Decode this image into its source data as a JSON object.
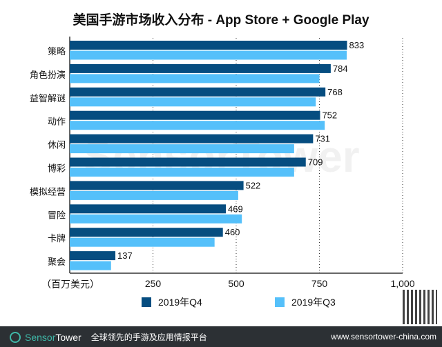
{
  "chart_data": {
    "type": "bar",
    "orientation": "horizontal",
    "title": "美国手游市场收入分布 - App Store + Google Play",
    "xlabel": "（百万美元）",
    "categories": [
      "策略",
      "角色扮演",
      "益智解谜",
      "动作",
      "休闲",
      "博彩",
      "模拟经营",
      "冒险",
      "卡牌",
      "聚会"
    ],
    "series": [
      {
        "name": "2019年Q4",
        "color": "#064d80",
        "values": [
          833,
          784,
          768,
          752,
          731,
          709,
          522,
          469,
          460,
          137
        ],
        "labels_shown": true
      },
      {
        "name": "2019年Q3",
        "color": "#55c0fa",
        "values": [
          832,
          750,
          739,
          766,
          674,
          674,
          506,
          517,
          435,
          124
        ],
        "labels_shown": false
      }
    ],
    "xlim": [
      0,
      1000
    ],
    "xticks": [
      "250",
      "500",
      "750",
      "1,000"
    ],
    "xtick_values": [
      250,
      500,
      750,
      1000
    ],
    "grid": "vertical dotted",
    "legend": "bottom"
  },
  "watermark": "SensorTower",
  "footer": {
    "brand_a": "Sensor",
    "brand_b": "Tower",
    "tagline": "全球领先的手游及应用情报平台",
    "url": "www.sensortower-china.com"
  }
}
